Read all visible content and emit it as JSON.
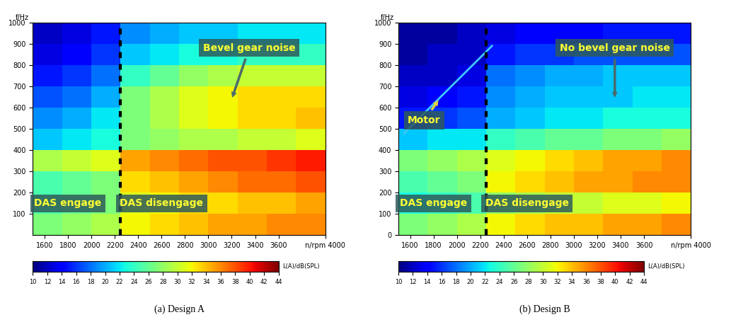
{
  "chart_data": [
    {
      "type": "heatmap",
      "title": "(a) Design A",
      "ylabel": "f/Hz",
      "x_edges": [
        1500,
        1750,
        2000,
        2250,
        2500,
        2750,
        3000,
        3250,
        3500,
        3750,
        4000
      ],
      "y_edges": [
        0,
        100,
        200,
        300,
        400,
        500,
        600,
        700,
        800,
        900,
        1000
      ],
      "cells": [
        [
          27,
          28,
          29,
          32,
          33,
          34,
          35,
          35,
          36,
          36
        ],
        [
          25,
          26,
          27,
          31,
          32,
          33,
          33,
          34,
          34,
          35
        ],
        [
          25,
          26,
          27,
          33,
          34,
          35,
          36,
          37,
          37,
          38
        ],
        [
          29,
          30,
          31,
          35,
          36,
          37,
          38,
          38,
          39,
          40
        ],
        [
          21,
          22,
          23,
          27,
          28,
          29,
          29,
          30,
          30,
          31
        ],
        [
          19,
          20,
          22,
          27,
          29,
          31,
          32,
          33,
          33,
          34
        ],
        [
          17,
          18,
          20,
          27,
          29,
          31,
          32,
          33,
          33,
          33
        ],
        [
          15,
          16,
          18,
          24,
          26,
          28,
          29,
          30,
          30,
          30
        ],
        [
          13,
          14,
          16,
          21,
          22,
          23,
          23,
          24,
          24,
          24
        ],
        [
          12,
          13,
          15,
          19,
          20,
          21,
          21,
          22,
          22,
          22
        ]
      ],
      "xlim": [
        1500,
        4000
      ],
      "xticks": [
        1600,
        1800,
        2000,
        2200,
        2400,
        2600,
        2800,
        3000,
        3200,
        3400,
        3600,
        {
          "value": 4000,
          "label": "n/rpm 4000"
        }
      ],
      "ylim": [
        0,
        1000
      ],
      "yticks": [
        100,
        200,
        300,
        400,
        500,
        600,
        700,
        800,
        900,
        1000
      ],
      "colorbar_label": "L(A)/dB(SPL)",
      "colorbar_range": [
        10,
        44
      ],
      "colorbar_ticks": [
        10,
        12,
        14,
        16,
        18,
        20,
        22,
        24,
        26,
        28,
        30,
        32,
        34,
        36,
        38,
        40,
        42,
        44
      ],
      "das_switch_rpm": 2250,
      "annotations": [
        "DAS engage",
        "DAS disengage",
        "Bevel gear noise"
      ],
      "lines": []
    },
    {
      "type": "heatmap",
      "title": "(b) Design B",
      "ylabel": "f/Hz",
      "x_edges": [
        1500,
        1750,
        2000,
        2250,
        2500,
        2750,
        3000,
        3250,
        3500,
        3750,
        4000
      ],
      "y_edges": [
        0,
        100,
        200,
        300,
        400,
        500,
        600,
        700,
        800,
        900,
        1000
      ],
      "cells": [
        [
          27,
          28,
          29,
          32,
          33,
          34,
          34,
          35,
          35,
          36
        ],
        [
          23,
          24,
          25,
          28,
          29,
          30,
          30,
          31,
          31,
          32
        ],
        [
          25,
          26,
          27,
          32,
          33,
          34,
          35,
          35,
          36,
          36
        ],
        [
          27,
          28,
          29,
          31,
          32,
          33,
          34,
          35,
          35,
          36
        ],
        [
          21,
          22,
          22,
          24,
          25,
          26,
          26,
          27,
          27,
          28
        ],
        [
          15,
          16,
          17,
          20,
          21,
          22,
          22,
          23,
          23,
          23
        ],
        [
          13,
          14,
          15,
          19,
          20,
          21,
          21,
          21,
          22,
          22
        ],
        [
          12,
          12,
          13,
          18,
          19,
          20,
          20,
          21,
          21,
          21
        ],
        [
          11,
          12,
          12,
          15,
          16,
          16,
          17,
          17,
          17,
          17
        ],
        [
          11,
          11,
          12,
          13,
          14,
          14,
          14,
          15,
          15,
          15
        ]
      ],
      "xlim": [
        1500,
        4000
      ],
      "xticks": [
        1600,
        1800,
        2000,
        2200,
        2400,
        2600,
        2800,
        3000,
        3200,
        3400,
        3600,
        {
          "value": 4000,
          "label": "n/rpm 4000"
        }
      ],
      "ylim": [
        0,
        1000
      ],
      "yticks": [
        0,
        100,
        200,
        300,
        400,
        500,
        600,
        700,
        800,
        900,
        1000
      ],
      "colorbar_label": "L(A)/dB(SPL)",
      "colorbar_range": [
        10,
        44
      ],
      "colorbar_ticks": [
        10,
        12,
        14,
        16,
        18,
        20,
        22,
        24,
        26,
        28,
        30,
        32,
        34,
        36,
        38,
        40,
        42,
        44
      ],
      "das_switch_rpm": 2250,
      "annotations": [
        "DAS engage",
        "DAS disengage",
        "No bevel gear noise",
        "Motor"
      ],
      "lines": [
        {
          "x": [
            1550,
            2300
          ],
          "y": [
            480,
            890
          ],
          "color": "#40c8ff"
        }
      ]
    }
  ]
}
